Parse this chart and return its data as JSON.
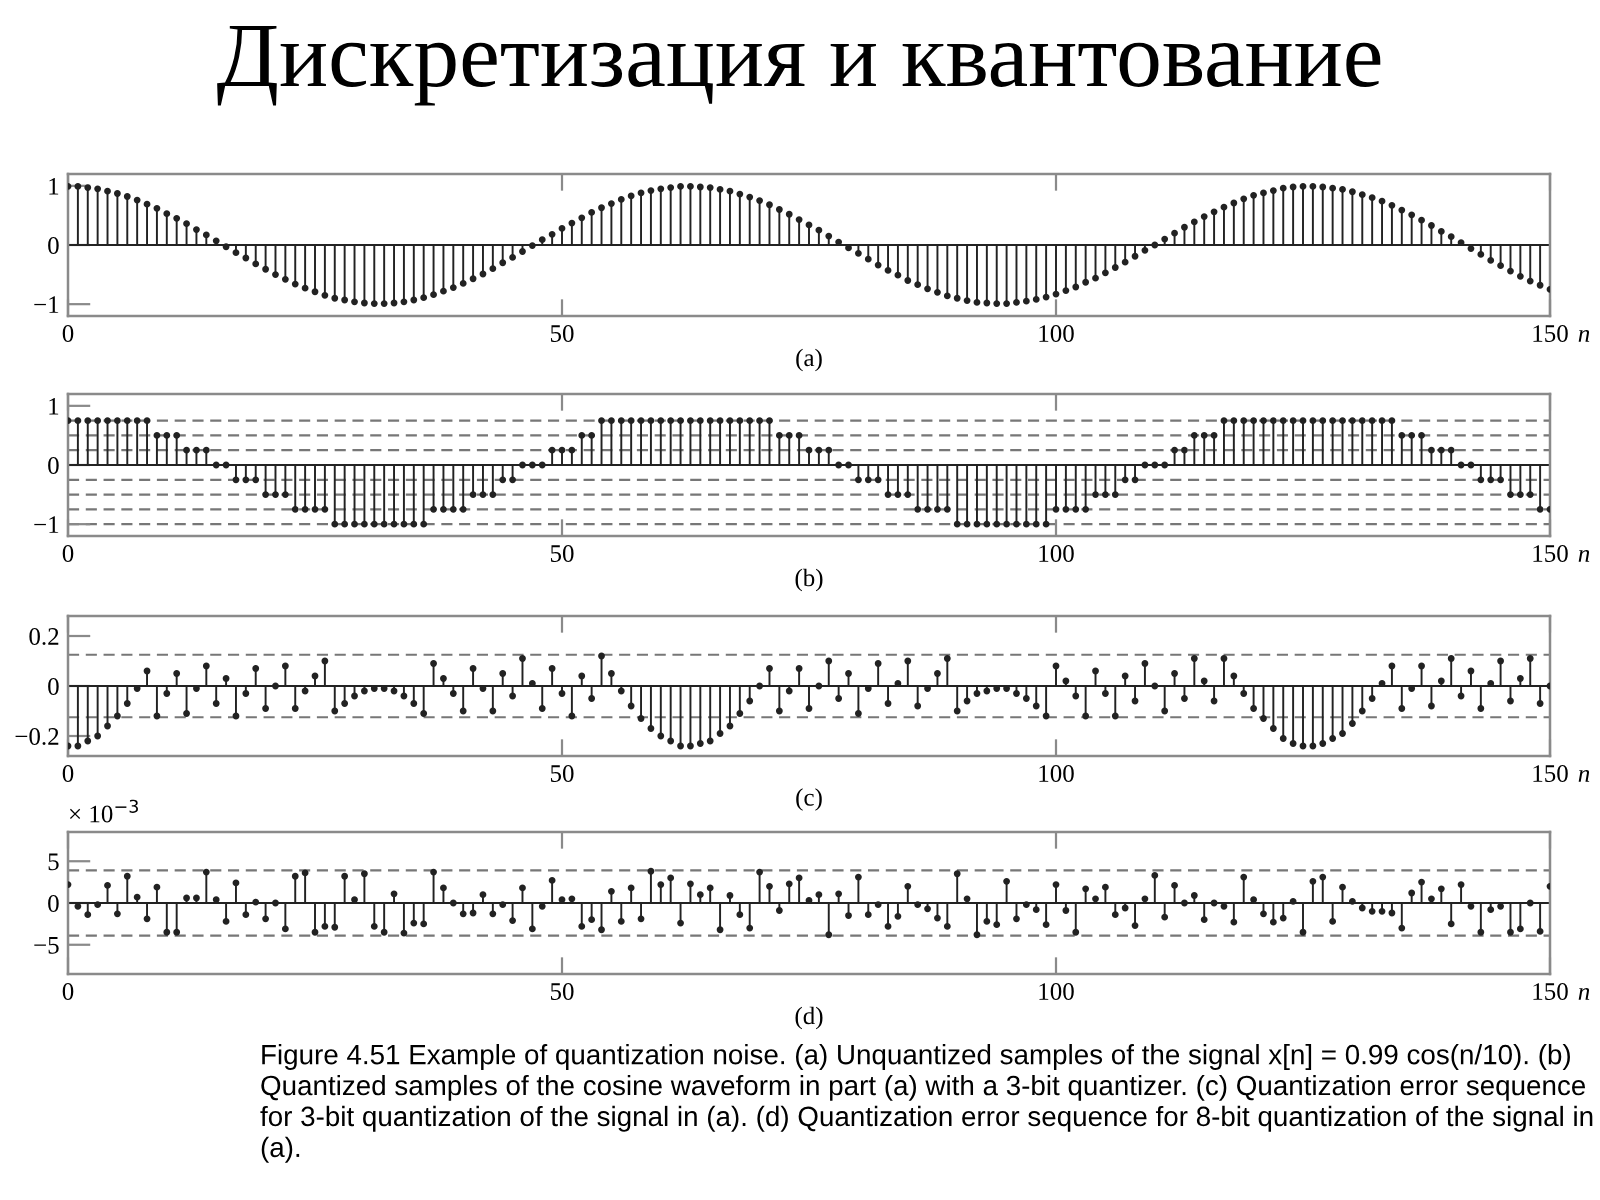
{
  "chart_data": [
    {
      "type": "lollipop",
      "title": "(a)",
      "xlabel": "n",
      "annotations": [
        "Дискретизация и квантование"
      ],
      "marker": "circle",
      "xlim": [
        0,
        150
      ],
      "xticks": [
        0,
        50,
        100,
        150
      ],
      "ylim": [
        -1.2,
        1.2
      ],
      "yticks": [
        {
          "value": -1,
          "label": "−1"
        },
        0,
        1
      ],
      "x": [
        0,
        1,
        2,
        3,
        4,
        5,
        6,
        7,
        8,
        9,
        10,
        11,
        12,
        13,
        14,
        15,
        16,
        17,
        18,
        19,
        20,
        21,
        22,
        23,
        24,
        25,
        26,
        27,
        28,
        29,
        30,
        31,
        32,
        33,
        34,
        35,
        36,
        37,
        38,
        39,
        40,
        41,
        42,
        43,
        44,
        45,
        46,
        47,
        48,
        49,
        50,
        51,
        52,
        53,
        54,
        55,
        56,
        57,
        58,
        59,
        60,
        61,
        62,
        63,
        64,
        65,
        66,
        67,
        68,
        69,
        70,
        71,
        72,
        73,
        74,
        75,
        76,
        77,
        78,
        79,
        80,
        81,
        82,
        83,
        84,
        85,
        86,
        87,
        88,
        89,
        90,
        91,
        92,
        93,
        94,
        95,
        96,
        97,
        98,
        99,
        100,
        101,
        102,
        103,
        104,
        105,
        106,
        107,
        108,
        109,
        110,
        111,
        112,
        113,
        114,
        115,
        116,
        117,
        118,
        119,
        120,
        121,
        122,
        123,
        124,
        125,
        126,
        127,
        128,
        129,
        130,
        131,
        132,
        133,
        134,
        135,
        136,
        137,
        138,
        139,
        140,
        141,
        142,
        143,
        144,
        145,
        146,
        147,
        148,
        149,
        150
      ],
      "series": [
        {
          "color": "#222222",
          "values": [
            0.99,
            0.99,
            0.97,
            0.95,
            0.91,
            0.87,
            0.82,
            0.76,
            0.69,
            0.62,
            0.53,
            0.45,
            0.36,
            0.26,
            0.17,
            0.07,
            -0.03,
            -0.13,
            -0.22,
            -0.32,
            -0.41,
            -0.5,
            -0.58,
            -0.66,
            -0.73,
            -0.79,
            -0.85,
            -0.9,
            -0.93,
            -0.96,
            -0.98,
            -0.99,
            -0.99,
            -0.98,
            -0.96,
            -0.93,
            -0.89,
            -0.84,
            -0.78,
            -0.72,
            -0.65,
            -0.57,
            -0.49,
            -0.4,
            -0.3,
            -0.21,
            -0.11,
            -0.01,
            0.09,
            0.18,
            0.28,
            0.37,
            0.46,
            0.55,
            0.63,
            0.7,
            0.77,
            0.83,
            0.88,
            0.92,
            0.95,
            0.97,
            0.99,
            0.99,
            0.98,
            0.97,
            0.94,
            0.91,
            0.86,
            0.81,
            0.75,
            0.68,
            0.6,
            0.52,
            0.43,
            0.34,
            0.25,
            0.15,
            0.05,
            -0.05,
            -0.14,
            -0.24,
            -0.34,
            -0.43,
            -0.51,
            -0.6,
            -0.67,
            -0.74,
            -0.8,
            -0.86,
            -0.9,
            -0.94,
            -0.97,
            -0.98,
            -0.99,
            -0.99,
            -0.97,
            -0.95,
            -0.92,
            -0.88,
            -0.83,
            -0.77,
            -0.71,
            -0.63,
            -0.56,
            -0.47,
            -0.38,
            -0.29,
            -0.19,
            -0.09,
            0.0,
            0.1,
            0.2,
            0.3,
            0.39,
            0.48,
            0.56,
            0.64,
            0.71,
            0.78,
            0.84,
            0.88,
            0.92,
            0.96,
            0.98,
            0.99,
            0.99,
            0.98,
            0.96,
            0.94,
            0.9,
            0.85,
            0.8,
            0.74,
            0.67,
            0.59,
            0.51,
            0.42,
            0.33,
            0.23,
            0.14,
            0.04,
            -0.06,
            -0.16,
            -0.26,
            -0.35,
            -0.44,
            -0.53,
            -0.61,
            -0.68,
            -0.75
          ]
        }
      ]
    },
    {
      "type": "lollipop",
      "title": "(b)",
      "xlabel": "n",
      "marker": "circle",
      "xlim": [
        0,
        150
      ],
      "xticks": [
        0,
        50,
        100,
        150
      ],
      "ylim": [
        -1.2,
        1.2
      ],
      "yticks": [
        {
          "value": -1,
          "label": "−1"
        },
        0,
        1
      ],
      "ref_lines": [
        {
          "axis": "y",
          "value": 0.75,
          "line_style": "dashed",
          "color": "#777777"
        },
        {
          "axis": "y",
          "value": 0.5,
          "line_style": "dashed",
          "color": "#777777"
        },
        {
          "axis": "y",
          "value": 0.25,
          "line_style": "dashed",
          "color": "#777777"
        },
        {
          "axis": "y",
          "value": -0.25,
          "line_style": "dashed",
          "color": "#777777"
        },
        {
          "axis": "y",
          "value": -0.5,
          "line_style": "dashed",
          "color": "#777777"
        },
        {
          "axis": "y",
          "value": -0.75,
          "line_style": "dashed",
          "color": "#777777"
        },
        {
          "axis": "y",
          "value": -1,
          "line_style": "dashed",
          "color": "#777777"
        }
      ],
      "x": [
        0,
        1,
        2,
        3,
        4,
        5,
        6,
        7,
        8,
        9,
        10,
        11,
        12,
        13,
        14,
        15,
        16,
        17,
        18,
        19,
        20,
        21,
        22,
        23,
        24,
        25,
        26,
        27,
        28,
        29,
        30,
        31,
        32,
        33,
        34,
        35,
        36,
        37,
        38,
        39,
        40,
        41,
        42,
        43,
        44,
        45,
        46,
        47,
        48,
        49,
        50,
        51,
        52,
        53,
        54,
        55,
        56,
        57,
        58,
        59,
        60,
        61,
        62,
        63,
        64,
        65,
        66,
        67,
        68,
        69,
        70,
        71,
        72,
        73,
        74,
        75,
        76,
        77,
        78,
        79,
        80,
        81,
        82,
        83,
        84,
        85,
        86,
        87,
        88,
        89,
        90,
        91,
        92,
        93,
        94,
        95,
        96,
        97,
        98,
        99,
        100,
        101,
        102,
        103,
        104,
        105,
        106,
        107,
        108,
        109,
        110,
        111,
        112,
        113,
        114,
        115,
        116,
        117,
        118,
        119,
        120,
        121,
        122,
        123,
        124,
        125,
        126,
        127,
        128,
        129,
        130,
        131,
        132,
        133,
        134,
        135,
        136,
        137,
        138,
        139,
        140,
        141,
        142,
        143,
        144,
        145,
        146,
        147,
        148,
        149,
        150
      ],
      "series": [
        {
          "color": "#222222",
          "values": [
            0.75,
            0.75,
            0.75,
            0.75,
            0.75,
            0.75,
            0.75,
            0.75,
            0.75,
            0.5,
            0.5,
            0.5,
            0.25,
            0.25,
            0.25,
            0,
            0,
            -0.25,
            -0.25,
            -0.25,
            -0.5,
            -0.5,
            -0.5,
            -0.75,
            -0.75,
            -0.75,
            -0.75,
            -1,
            -1,
            -1,
            -1,
            -1,
            -1,
            -1,
            -1,
            -1,
            -1,
            -0.75,
            -0.75,
            -0.75,
            -0.75,
            -0.5,
            -0.5,
            -0.5,
            -0.25,
            -0.25,
            0,
            0,
            0,
            0.25,
            0.25,
            0.25,
            0.5,
            0.5,
            0.75,
            0.75,
            0.75,
            0.75,
            0.75,
            0.75,
            0.75,
            0.75,
            0.75,
            0.75,
            0.75,
            0.75,
            0.75,
            0.75,
            0.75,
            0.75,
            0.75,
            0.75,
            0.5,
            0.5,
            0.5,
            0.25,
            0.25,
            0.25,
            0,
            0,
            -0.25,
            -0.25,
            -0.25,
            -0.5,
            -0.5,
            -0.5,
            -0.75,
            -0.75,
            -0.75,
            -0.75,
            -1,
            -1,
            -1,
            -1,
            -1,
            -1,
            -1,
            -1,
            -1,
            -1,
            -0.75,
            -0.75,
            -0.75,
            -0.75,
            -0.5,
            -0.5,
            -0.5,
            -0.25,
            -0.25,
            0,
            0,
            0,
            0.25,
            0.25,
            0.5,
            0.5,
            0.5,
            0.75,
            0.75,
            0.75,
            0.75,
            0.75,
            0.75,
            0.75,
            0.75,
            0.75,
            0.75,
            0.75,
            0.75,
            0.75,
            0.75,
            0.75,
            0.75,
            0.75,
            0.75,
            0.5,
            0.5,
            0.5,
            0.25,
            0.25,
            0.25,
            0,
            0,
            -0.25,
            -0.25,
            -0.25,
            -0.5,
            -0.5,
            -0.5,
            -0.75,
            -0.75
          ]
        }
      ]
    },
    {
      "type": "lollipop",
      "title": "(c)",
      "xlabel": "n",
      "marker": "circle",
      "xlim": [
        0,
        150
      ],
      "xticks": [
        0,
        50,
        100,
        150
      ],
      "ylim": [
        -0.28,
        0.28
      ],
      "yticks": [
        {
          "value": -0.2,
          "label": "−0.2"
        },
        0,
        0.2
      ],
      "ref_lines": [
        {
          "axis": "y",
          "value": 0.125,
          "line_style": "dashed",
          "color": "#777777"
        },
        {
          "axis": "y",
          "value": -0.125,
          "line_style": "dashed",
          "color": "#777777"
        }
      ],
      "x": [
        0,
        1,
        2,
        3,
        4,
        5,
        6,
        7,
        8,
        9,
        10,
        11,
        12,
        13,
        14,
        15,
        16,
        17,
        18,
        19,
        20,
        21,
        22,
        23,
        24,
        25,
        26,
        27,
        28,
        29,
        30,
        31,
        32,
        33,
        34,
        35,
        36,
        37,
        38,
        39,
        40,
        41,
        42,
        43,
        44,
        45,
        46,
        47,
        48,
        49,
        50,
        51,
        52,
        53,
        54,
        55,
        56,
        57,
        58,
        59,
        60,
        61,
        62,
        63,
        64,
        65,
        66,
        67,
        68,
        69,
        70,
        71,
        72,
        73,
        74,
        75,
        76,
        77,
        78,
        79,
        80,
        81,
        82,
        83,
        84,
        85,
        86,
        87,
        88,
        89,
        90,
        91,
        92,
        93,
        94,
        95,
        96,
        97,
        98,
        99,
        100,
        101,
        102,
        103,
        104,
        105,
        106,
        107,
        108,
        109,
        110,
        111,
        112,
        113,
        114,
        115,
        116,
        117,
        118,
        119,
        120,
        121,
        122,
        123,
        124,
        125,
        126,
        127,
        128,
        129,
        130,
        131,
        132,
        133,
        134,
        135,
        136,
        137,
        138,
        139,
        140,
        141,
        142,
        143,
        144,
        145,
        146,
        147,
        148,
        149,
        150
      ],
      "series": [
        {
          "color": "#222222",
          "values": [
            -0.24,
            -0.24,
            -0.22,
            -0.2,
            -0.16,
            -0.12,
            -0.07,
            -0.01,
            0.06,
            -0.12,
            -0.03,
            0.05,
            -0.11,
            -0.01,
            0.08,
            -0.07,
            0.03,
            -0.12,
            -0.03,
            0.07,
            -0.09,
            0.0,
            0.08,
            -0.09,
            -0.02,
            0.04,
            0.1,
            -0.1,
            -0.07,
            -0.04,
            -0.02,
            -0.01,
            -0.01,
            -0.02,
            -0.04,
            -0.07,
            -0.11,
            0.09,
            0.03,
            -0.03,
            -0.1,
            0.07,
            -0.01,
            -0.1,
            0.05,
            -0.04,
            0.11,
            0.01,
            -0.09,
            0.07,
            -0.03,
            -0.12,
            0.04,
            -0.05,
            0.12,
            0.05,
            -0.02,
            -0.08,
            -0.13,
            -0.17,
            -0.2,
            -0.22,
            -0.24,
            -0.24,
            -0.23,
            -0.22,
            -0.19,
            -0.16,
            -0.11,
            -0.06,
            0.0,
            0.07,
            -0.1,
            -0.02,
            0.07,
            -0.09,
            0.0,
            0.1,
            -0.05,
            0.05,
            -0.11,
            -0.01,
            0.09,
            -0.07,
            0.01,
            0.1,
            -0.08,
            -0.01,
            0.05,
            0.11,
            -0.1,
            -0.06,
            -0.03,
            -0.02,
            -0.01,
            -0.01,
            -0.03,
            -0.05,
            -0.08,
            -0.12,
            0.08,
            0.02,
            -0.04,
            -0.12,
            0.06,
            -0.03,
            -0.12,
            0.04,
            -0.06,
            0.09,
            0.0,
            -0.1,
            0.05,
            -0.05,
            0.11,
            0.02,
            -0.06,
            0.11,
            0.04,
            -0.03,
            -0.09,
            -0.13,
            -0.17,
            -0.21,
            -0.23,
            -0.24,
            -0.24,
            -0.23,
            -0.21,
            -0.19,
            -0.15,
            -0.1,
            -0.05,
            0.01,
            0.08,
            -0.09,
            -0.01,
            0.08,
            -0.08,
            0.02,
            0.11,
            -0.04,
            0.06,
            -0.09,
            0.01,
            0.1,
            -0.06,
            0.03,
            0.11,
            -0.07,
            0.0
          ]
        }
      ]
    },
    {
      "type": "lollipop",
      "title": "(d)",
      "xlabel": "n",
      "annotations": [
        "× 10$^{−3}$",
        "Figure 4.51 Example of quantization noise. (a) Unquantized samples of the signal x[n] = 0.99 cos(n/10). (b) Quantized samples of the cosine waveform in part (a) with a 3-bit quantizer. (c) Quantization error sequence for 3-bit quantization of the signal in (a). (d) Quantization error sequence for 8-bit quantization of the signal in (a)."
      ],
      "marker": "circle",
      "xlim": [
        0,
        150
      ],
      "xticks": [
        0,
        50,
        100,
        150
      ],
      "ylim": [
        -8.5,
        8.5
      ],
      "yticks": [
        {
          "value": -5,
          "label": "−5"
        },
        0,
        5
      ],
      "ref_lines": [
        {
          "axis": "y",
          "value": 3.9,
          "line_style": "dashed",
          "color": "#777777"
        },
        {
          "axis": "y",
          "value": -3.9,
          "line_style": "dashed",
          "color": "#777777"
        }
      ],
      "x": [
        0,
        1,
        2,
        3,
        4,
        5,
        6,
        7,
        8,
        9,
        10,
        11,
        12,
        13,
        14,
        15,
        16,
        17,
        18,
        19,
        20,
        21,
        22,
        23,
        24,
        25,
        26,
        27,
        28,
        29,
        30,
        31,
        32,
        33,
        34,
        35,
        36,
        37,
        38,
        39,
        40,
        41,
        42,
        43,
        44,
        45,
        46,
        47,
        48,
        49,
        50,
        51,
        52,
        53,
        54,
        55,
        56,
        57,
        58,
        59,
        60,
        61,
        62,
        63,
        64,
        65,
        66,
        67,
        68,
        69,
        70,
        71,
        72,
        73,
        74,
        75,
        76,
        77,
        78,
        79,
        80,
        81,
        82,
        83,
        84,
        85,
        86,
        87,
        88,
        89,
        90,
        91,
        92,
        93,
        94,
        95,
        96,
        97,
        98,
        99,
        100,
        101,
        102,
        103,
        104,
        105,
        106,
        107,
        108,
        109,
        110,
        111,
        112,
        113,
        114,
        115,
        116,
        117,
        118,
        119,
        120,
        121,
        122,
        123,
        124,
        125,
        126,
        127,
        128,
        129,
        130,
        131,
        132,
        133,
        134,
        135,
        136,
        137,
        138,
        139,
        140,
        141,
        142,
        143,
        144,
        145,
        146,
        147,
        148,
        149,
        150
      ],
      "series": [
        {
          "color": "#222222",
          "values": [
            2.2,
            -0.4,
            -1.4,
            -0.2,
            2.1,
            -1.3,
            3.2,
            0.7,
            -1.9,
            1.9,
            -3.5,
            -3.5,
            0.6,
            0.6,
            3.7,
            0.4,
            -2.2,
            2.4,
            -1.4,
            0.1,
            -1.9,
            0.0,
            -3.1,
            3.2,
            3.6,
            -3.5,
            -2.8,
            -2.9,
            3.2,
            0.4,
            3.5,
            -2.8,
            -3.5,
            1.1,
            -3.6,
            -2.4,
            -2.5,
            3.7,
            1.8,
            0.0,
            -1.3,
            -1.2,
            1.0,
            -1.3,
            -0.2,
            -2.1,
            1.8,
            -3.1,
            -0.4,
            2.7,
            0.4,
            0.5,
            -2.8,
            -2.0,
            -3.2,
            1.4,
            -2.2,
            1.8,
            -1.9,
            3.8,
            2.2,
            3.0,
            -2.4,
            2.3,
            1.0,
            1.8,
            -3.2,
            0.9,
            -1.4,
            -3.0,
            3.7,
            2.0,
            -0.9,
            2.3,
            3.0,
            0.3,
            1.0,
            -3.8,
            1.1,
            -1.5,
            3.1,
            -1.4,
            -0.2,
            -2.8,
            -1.6,
            2.0,
            -0.2,
            -0.7,
            -1.8,
            -2.8,
            3.5,
            0.5,
            -3.8,
            -2.2,
            -2.6,
            2.6,
            -1.9,
            -0.2,
            -0.8,
            -2.6,
            2.2,
            -0.9,
            -3.5,
            1.7,
            0.5,
            1.9,
            -1.4,
            -0.6,
            -2.7,
            0.5,
            3.3,
            -1.7,
            2.1,
            0.0,
            0.9,
            -2.0,
            0.0,
            -0.4,
            -2.3,
            3.1,
            0.4,
            -1.3,
            -2.3,
            -1.8,
            0.2,
            -3.5,
            2.6,
            3.1,
            -2.2,
            1.9,
            0.2,
            -0.6,
            -1.0,
            -1.0,
            -1.2,
            -3.0,
            1.2,
            2.5,
            0.5,
            1.7,
            -2.5,
            2.2,
            -0.4,
            -3.5,
            -0.8,
            -0.4,
            -3.5,
            -3.1,
            0.0,
            -3.4,
            2.0
          ]
        }
      ]
    }
  ]
}
